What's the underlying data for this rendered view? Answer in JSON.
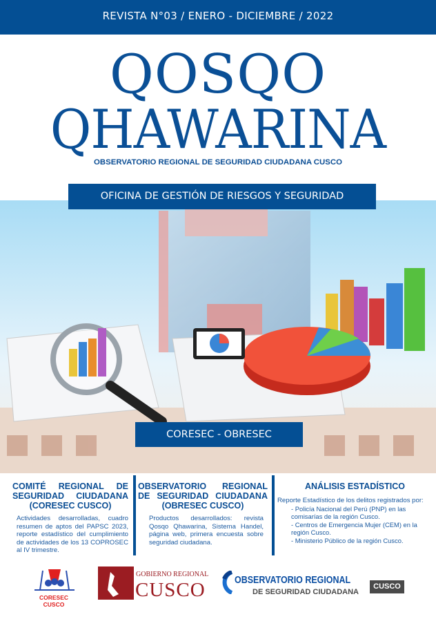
{
  "header": {
    "issue": "REVISTA  N°03 / ENERO - DICIEMBRE / 2022"
  },
  "title": {
    "line1": "QOSQO",
    "line2": "QHAWARINA",
    "subtitle": "OBSERVATORIO REGIONAL DE SEGURIDAD CIUDADANA CUSCO"
  },
  "office_banner": "OFICINA DE GESTIÓN DE RIESGOS Y SEGURIDAD",
  "section_banner": "CORESEC - OBRESEC",
  "columns": [
    {
      "heading": "COMITÉ REGIONAL DE SEGURIDAD CIUDADANA (CORESEC CUSCO)",
      "body": "Actividades desarrolladas, cuadro resumen de aptos del PAPSC 2023, reporte estadístico del cumplimiento de actividades de los 13 COPROSEC al IV trimestre."
    },
    {
      "heading": "OBSERVATORIO REGIONAL DE SEGURIDAD CIUDADANA (OBRESEC CUSCO)",
      "body": "Productos desarrollados: revista Qosqo Qhawarina, Sistema Handel, página web, primera encuesta sobre seguridad ciudadana."
    },
    {
      "heading": "ANÁLISIS ESTADÍSTICO",
      "body": "Reporte Estadístico de los delitos registrados por:",
      "items": [
        "- Policía Nacional del Perú (PNP) en las comisarías de la región Cusco.",
        "- Centros de Emergencia Mujer (CEM) en la región Cusco.",
        "- Ministerio Público de la región Cusco."
      ]
    }
  ],
  "logos": {
    "coresec": "CORESEC CUSCO",
    "gobierno_small": "GOBIERNO REGIONAL",
    "gobierno_big": "CUSCO",
    "obs_line1": "OBSERVATORIO REGIONAL",
    "obs_line2": "DE SEGURIDAD CIUDADANA",
    "obs_tag": "CUSCO"
  },
  "colors": {
    "primary": "#044f94",
    "logo_red": "#9b1c22",
    "tag_gray": "#4a4a4a"
  }
}
